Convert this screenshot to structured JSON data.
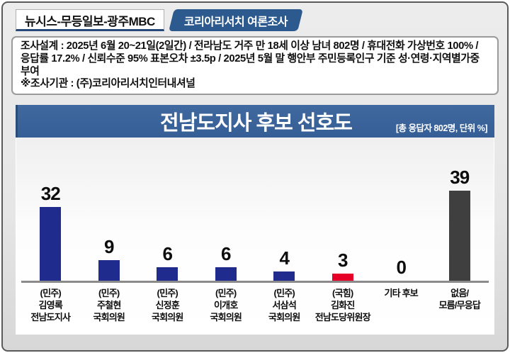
{
  "header": {
    "source": "뉴시스-무등일보-광주MBC",
    "badge": "코리아리서치 여론조사"
  },
  "survey_info": {
    "design": "조사설계 : 2025년 6월 20~21일(2일간) / 전라남도 거주 만 18세 이상 남녀 802명 / 휴대전화 가상번호 100% / 응답률 17.2% / 신뢰수준 95% 표본오차 ±3.5p / 2025년 5월 말 행안부 주민등록인구 기준 성·연령·지역별가중 부여",
    "agency": "※조사기관 : (주)코리아리서치인터내셔널"
  },
  "chart": {
    "title": "전남도지사 후보 선호도",
    "subtitle": "[총 응답자 802명, 단위 %]"
  },
  "chart_data": {
    "type": "bar",
    "title": "전남도지사 후보 선호도",
    "unit": "%",
    "total_respondents": "802명",
    "categories": [
      [
        "(민주)",
        "김영록",
        "전남도지사"
      ],
      [
        "(민주)",
        "주철현",
        "국회의원"
      ],
      [
        "(민주)",
        "신정훈",
        "국회의원"
      ],
      [
        "(민주)",
        "이개호",
        "국회의원"
      ],
      [
        "(민주)",
        "서삼석",
        "국회의원"
      ],
      [
        "(국힘)",
        "김화진",
        "전남도당위원장"
      ],
      [
        "기타 후보"
      ],
      [
        "없음/",
        "모름/무응답"
      ]
    ],
    "values": [
      32,
      9,
      6,
      6,
      4,
      3,
      0,
      39
    ],
    "bar_colors": [
      "#1f2b8d",
      "#1f2b8d",
      "#1f2b8d",
      "#1f2b8d",
      "#1f2b8d",
      "#e60028",
      "#3f3f3f",
      "#3f3f3f"
    ],
    "ylim": [
      0,
      45
    ],
    "grid": false,
    "legend": false
  },
  "colors": {
    "democratic_bar": "#1f2b8d",
    "ppp_bar": "#e60028",
    "none_bar": "#3f3f3f",
    "title_bar": "#38629a",
    "badge": "#2d5a8e",
    "background": "#e6e6e6"
  }
}
